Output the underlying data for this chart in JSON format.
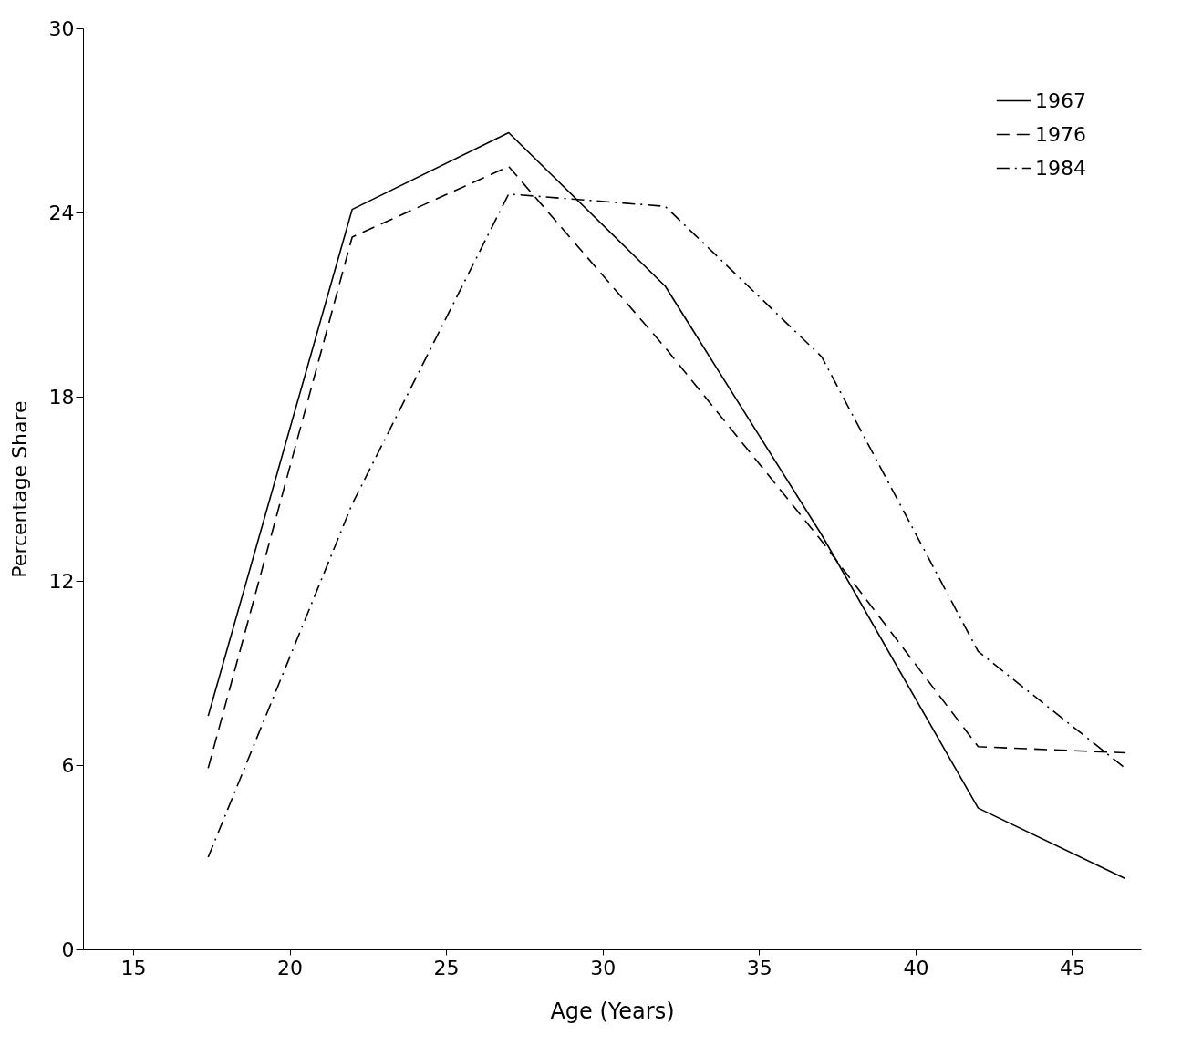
{
  "chart_data": {
    "type": "line",
    "xlabel": "Age (Years)",
    "ylabel": "Percentage Share",
    "x": [
      17.4,
      22,
      27,
      32,
      37,
      42,
      46.7
    ],
    "series": [
      {
        "name": "1967",
        "color": "#000000",
        "line_style": "solid",
        "values": [
          7.6,
          24.1,
          26.6,
          21.6,
          13.5,
          4.6,
          2.3
        ]
      },
      {
        "name": "1976",
        "color": "#000000",
        "line_style": "dashed",
        "values": [
          5.9,
          23.2,
          25.5,
          19.6,
          13.3,
          6.6,
          6.4
        ]
      },
      {
        "name": "1984",
        "color": "#000000",
        "line_style": "dashdot",
        "values": [
          3.0,
          14.5,
          24.6,
          24.2,
          19.3,
          9.7,
          5.9
        ]
      }
    ],
    "xlim": [
      13.4,
      47.2
    ],
    "xticks": [
      15,
      20,
      25,
      30,
      35,
      40,
      45
    ],
    "ylim": [
      0,
      30
    ],
    "yticks": [
      0,
      6,
      12,
      18,
      24,
      30
    ],
    "grid": false,
    "legend": "top right",
    "marker": "none"
  }
}
